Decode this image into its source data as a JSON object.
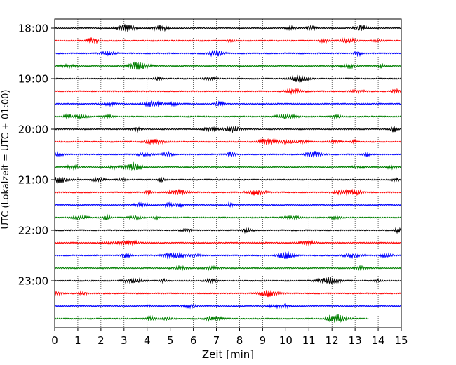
{
  "chart_data": {
    "type": "line",
    "title": "",
    "xlabel": "Zeit  [min]",
    "ylabel": "UTC (Lokalzeit = UTC + 01:00)",
    "xlim": [
      0,
      15
    ],
    "x_ticks": [
      "0",
      "1",
      "2",
      "3",
      "4",
      "5",
      "6",
      "7",
      "8",
      "9",
      "10",
      "11",
      "12",
      "13",
      "14",
      "15"
    ],
    "y_ticks": [
      "18:00",
      "19:00",
      "20:00",
      "21:00",
      "22:00",
      "23:00"
    ],
    "grid": "vertical dotted",
    "trace_interval_min": 15,
    "traces_per_hour": 4,
    "trace_colors": [
      "#000000",
      "#ff0000",
      "#0000ff",
      "#008000"
    ],
    "traces": [
      {
        "start": "18:00",
        "end_min": 15
      },
      {
        "start": "18:15",
        "end_min": 15
      },
      {
        "start": "18:30",
        "end_min": 15
      },
      {
        "start": "18:45",
        "end_min": 15
      },
      {
        "start": "19:00",
        "end_min": 15
      },
      {
        "start": "19:15",
        "end_min": 15
      },
      {
        "start": "19:30",
        "end_min": 15
      },
      {
        "start": "19:45",
        "end_min": 15
      },
      {
        "start": "20:00",
        "end_min": 15
      },
      {
        "start": "20:15",
        "end_min": 15
      },
      {
        "start": "20:30",
        "end_min": 15
      },
      {
        "start": "20:45",
        "end_min": 15
      },
      {
        "start": "21:00",
        "end_min": 15
      },
      {
        "start": "21:15",
        "end_min": 15
      },
      {
        "start": "21:30",
        "end_min": 15
      },
      {
        "start": "21:45",
        "end_min": 15
      },
      {
        "start": "22:00",
        "end_min": 15
      },
      {
        "start": "22:15",
        "end_min": 15
      },
      {
        "start": "22:30",
        "end_min": 15
      },
      {
        "start": "22:45",
        "end_min": 15
      },
      {
        "start": "23:00",
        "end_min": 15
      },
      {
        "start": "23:15",
        "end_min": 15
      },
      {
        "start": "23:30",
        "end_min": 15
      },
      {
        "start": "23:45",
        "end_min": 13.6
      }
    ]
  }
}
